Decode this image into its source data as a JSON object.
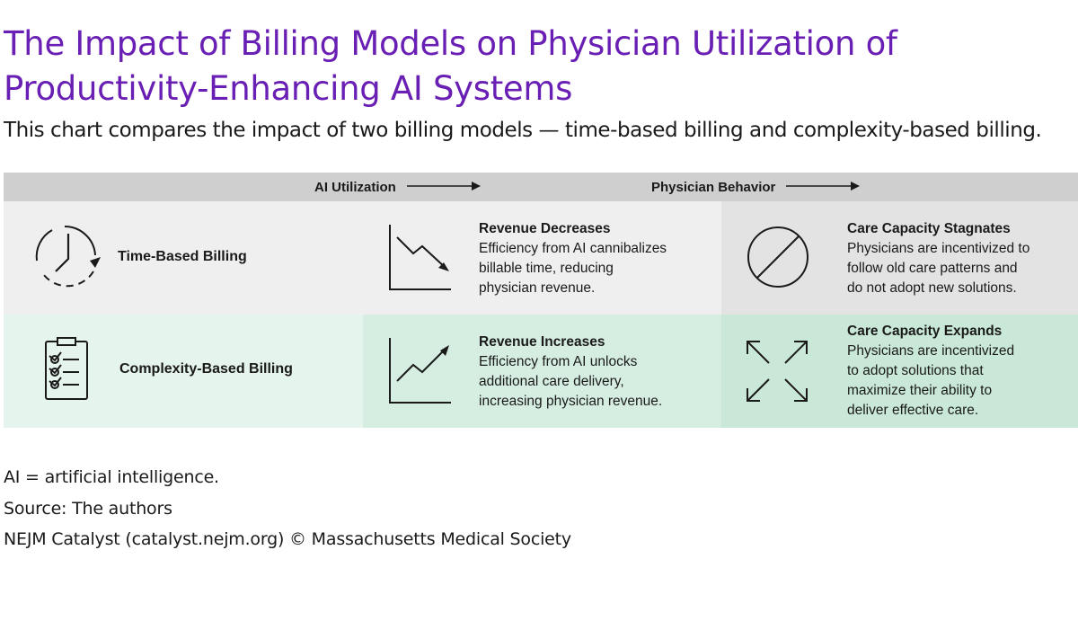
{
  "title": "The Impact of Billing Models on Physician Utilization of Productivity-Enhancing AI Systems",
  "subtitle": "This chart compares the impact of two billing models — time-based billing and complexity-based billing.",
  "header": {
    "col2": "AI Utilization",
    "col3": "Physician Behavior"
  },
  "rows": [
    {
      "label": "Time-Based Billing",
      "icon": "clock-icon",
      "utilization": {
        "icon": "downtrend-chart-icon",
        "heading": "Revenue Decreases",
        "lines": [
          "Efficiency from AI cannibalizes",
          "billable time, reducing",
          "physician revenue."
        ]
      },
      "behavior": {
        "icon": "prohibited-icon",
        "heading": "Care Capacity Stagnates",
        "lines": [
          "Physicians are incentivized to",
          "follow old care patterns and",
          "do not adopt new solutions."
        ]
      }
    },
    {
      "label": "Complexity-Based Billing",
      "icon": "clipboard-checklist-icon",
      "utilization": {
        "icon": "uptrend-chart-icon",
        "heading": "Revenue Increases",
        "lines": [
          "Efficiency from AI unlocks",
          "additional care delivery,",
          "increasing physician revenue."
        ]
      },
      "behavior": {
        "icon": "expand-arrows-icon",
        "heading": "Care Capacity Expands",
        "lines": [
          "Physicians are incentivized",
          "to adopt solutions that",
          "maximize their ability to",
          "deliver effective care."
        ]
      }
    }
  ],
  "footer": {
    "abbrev": "AI = artificial intelligence.",
    "source": "Source: The authors",
    "credit": "NEJM Catalyst (catalyst.nejm.org) © Massachusetts Medical Society"
  },
  "colors": {
    "title": "#6a1fb4",
    "header_bg": "#cfcfcf",
    "row1_bg": "#efefef",
    "row2_bg": "#d6eee1"
  }
}
